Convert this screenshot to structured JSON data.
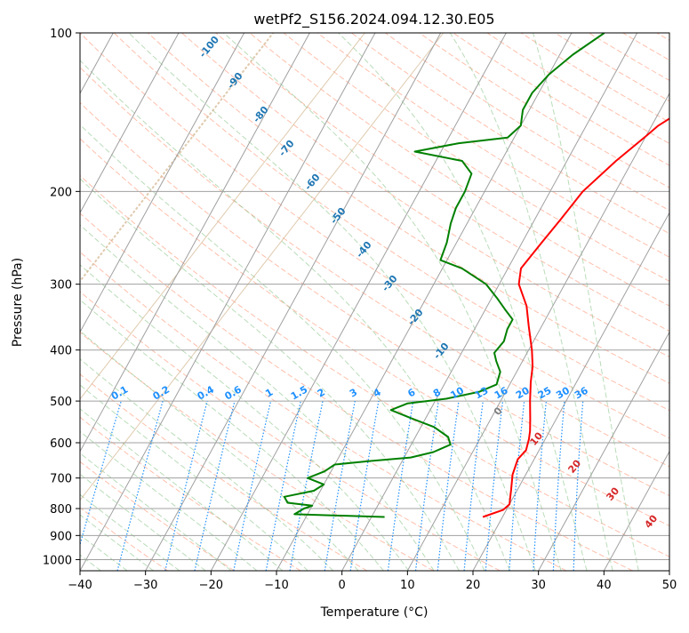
{
  "chart_data": {
    "type": "skew-t",
    "title": "wetPf2_S156.2024.094.12.30.E05",
    "xlabel": "Temperature (°C)",
    "ylabel": "Pressure (hPa)",
    "xlim": [
      -40,
      50
    ],
    "ylim": [
      1050,
      100
    ],
    "y_scale": "log",
    "grid": true,
    "x_ticks": [
      -40,
      -30,
      -20,
      -10,
      0,
      10,
      20,
      30,
      40,
      50
    ],
    "y_ticks": [
      100,
      200,
      300,
      400,
      500,
      600,
      700,
      800,
      900,
      1000
    ],
    "series": [
      {
        "color": "#ff0000",
        "points": [
          [
            17.0,
            830
          ],
          [
            19.5,
            805
          ],
          [
            20.0,
            785
          ],
          [
            19.5,
            760
          ],
          [
            19.0,
            735
          ],
          [
            18.0,
            690
          ],
          [
            17.5,
            645
          ],
          [
            18.0,
            620
          ],
          [
            17.5,
            590
          ],
          [
            17.0,
            570
          ],
          [
            16.0,
            540
          ],
          [
            14.5,
            500
          ],
          [
            13.0,
            460
          ],
          [
            12.0,
            430
          ],
          [
            10.5,
            400
          ],
          [
            8.0,
            360
          ],
          [
            6.0,
            330
          ],
          [
            3.0,
            300
          ],
          [
            2.0,
            280
          ],
          [
            3.0,
            250
          ],
          [
            4.0,
            225
          ],
          [
            5.0,
            200
          ],
          [
            7.5,
            175
          ],
          [
            10.0,
            157
          ],
          [
            11.0,
            150
          ],
          [
            13.5,
            140
          ],
          [
            15.0,
            130
          ],
          [
            15.5,
            120
          ],
          [
            16.0,
            110
          ],
          [
            17.5,
            100
          ]
        ]
      },
      {
        "color": "#008000",
        "points": [
          [
            2.0,
            830
          ],
          [
            -12.0,
            820
          ],
          [
            -11.0,
            800
          ],
          [
            -10.0,
            790
          ],
          [
            -14.0,
            780
          ],
          [
            -15.0,
            760
          ],
          [
            -11.0,
            740
          ],
          [
            -10.0,
            720
          ],
          [
            -13.0,
            700
          ],
          [
            -11.0,
            680
          ],
          [
            -10.0,
            660
          ],
          [
            -5.0,
            650
          ],
          [
            1.0,
            640
          ],
          [
            4.0,
            625
          ],
          [
            6.0,
            605
          ],
          [
            5.0,
            585
          ],
          [
            2.0,
            560
          ],
          [
            -2.0,
            540
          ],
          [
            -6.0,
            520
          ],
          [
            -4.0,
            505
          ],
          [
            1.5,
            495
          ],
          [
            6.0,
            480
          ],
          [
            8.0,
            465
          ],
          [
            7.5,
            440
          ],
          [
            6.0,
            420
          ],
          [
            5.0,
            405
          ],
          [
            5.5,
            385
          ],
          [
            5.0,
            365
          ],
          [
            5.0,
            350
          ],
          [
            3.0,
            335
          ],
          [
            1.0,
            320
          ],
          [
            -2.0,
            300
          ],
          [
            -7.0,
            280
          ],
          [
            -11.0,
            270
          ],
          [
            -11.5,
            250
          ],
          [
            -12.5,
            230
          ],
          [
            -13.0,
            215
          ],
          [
            -13.0,
            200
          ],
          [
            -13.5,
            185
          ],
          [
            -16.0,
            175
          ],
          [
            -24.0,
            168
          ],
          [
            -18.0,
            162
          ],
          [
            -11.0,
            158
          ],
          [
            -10.0,
            150
          ],
          [
            -10.5,
            145
          ],
          [
            -11.0,
            140
          ],
          [
            -11.0,
            130
          ],
          [
            -10.0,
            120
          ],
          [
            -8.0,
            110
          ],
          [
            -5.0,
            100
          ]
        ]
      }
    ],
    "dry_adiabat_labels": [
      "-100",
      "-90",
      "-80",
      "-70",
      "-60",
      "-50",
      "-40",
      "-30",
      "-20",
      "-10"
    ],
    "mixing_ratio_labels": [
      "0.1",
      "0.2",
      "0.4",
      "0.6",
      "1",
      "1.5",
      "2",
      "3",
      "4",
      "6",
      "8",
      "10",
      "13",
      "16",
      "20",
      "25",
      "30",
      "36"
    ],
    "moist_adiabat_labels": [
      "0",
      "10",
      "20",
      "30",
      "40"
    ],
    "colors": {
      "temperature": "#ff0000",
      "dewpoint": "#008000",
      "isotherms": "#a0a0a0",
      "isobars": "#a0a0a0",
      "dry_adiabats": "#ff8a66",
      "moist_adiabats": "#7fbf7f",
      "mixing_ratio": "#1e90ff",
      "dry_label": "#1f77b4",
      "moist_label": "#d62728",
      "zero_label": "#808080",
      "tan_curves": "#d2b48c"
    }
  }
}
